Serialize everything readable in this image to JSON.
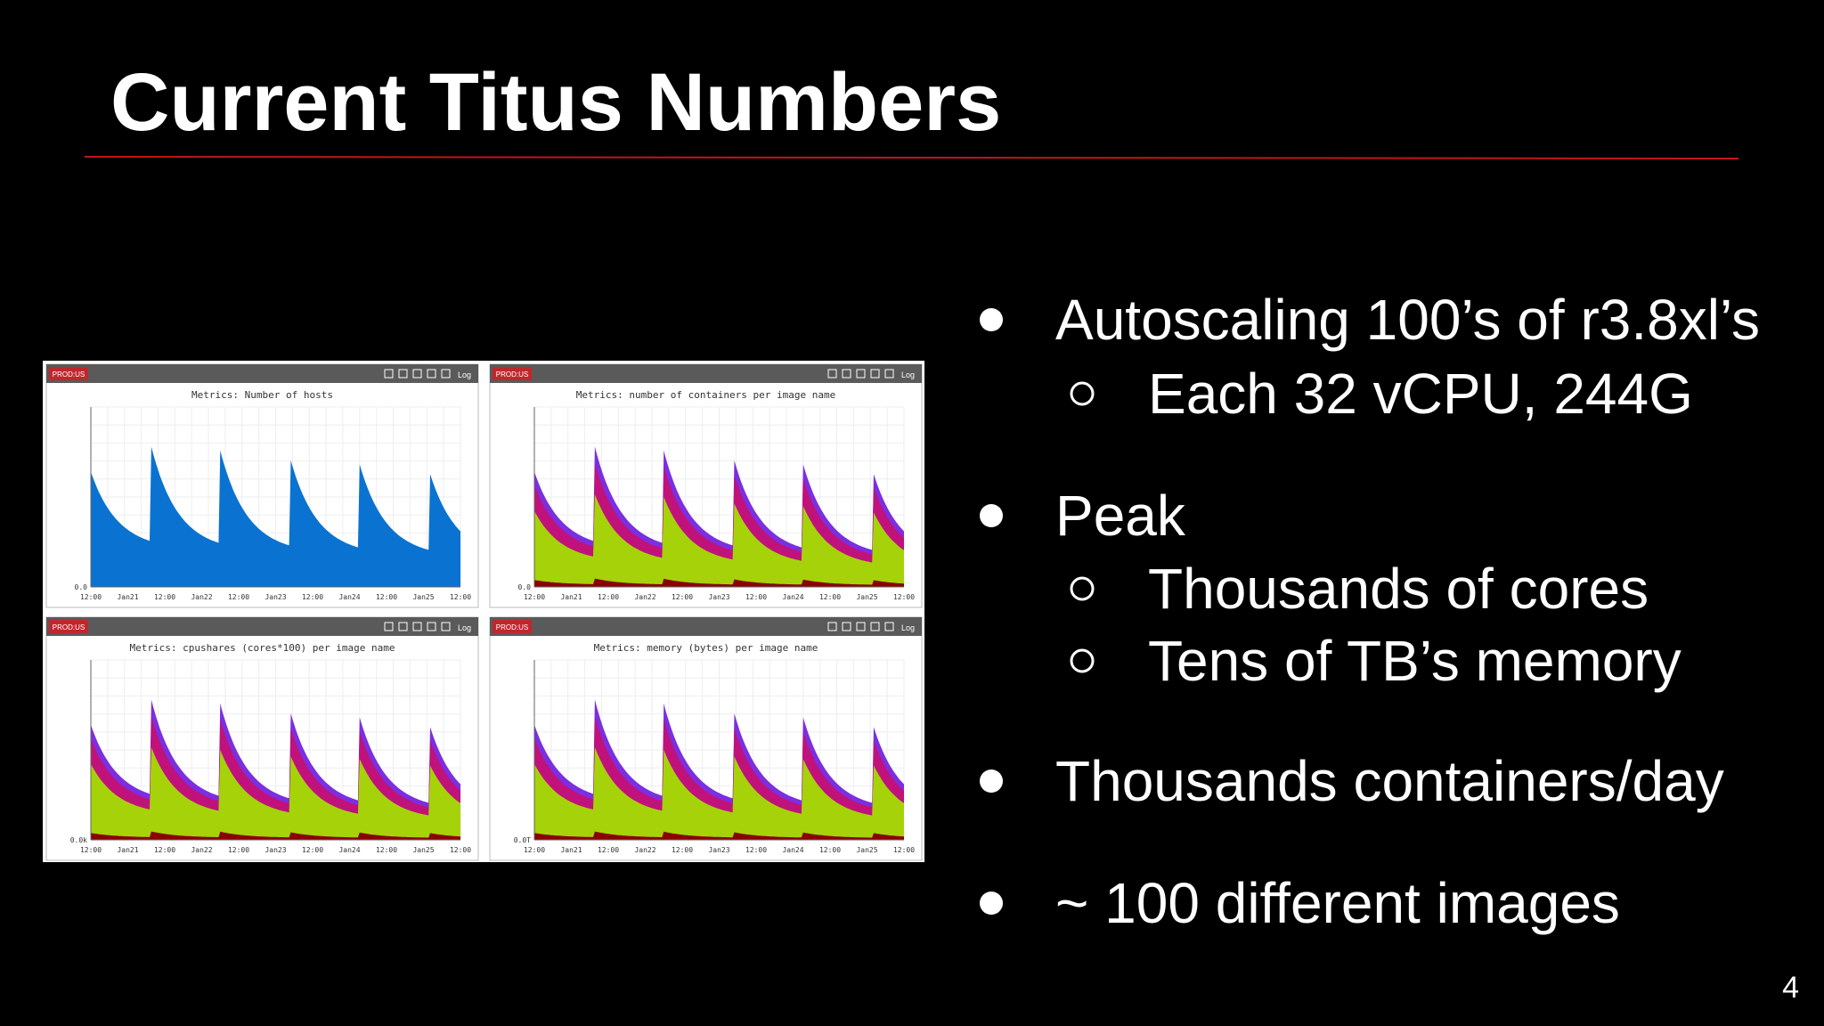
{
  "title": "Current Titus Numbers",
  "bullets": [
    {
      "text": "Autoscaling 100’s of r3.8xl’s",
      "sub": [
        "Each 32 vCPU, 244G"
      ]
    },
    {
      "text": "Peak",
      "sub": [
        "Thousands of cores",
        "Tens of TB’s memory"
      ]
    },
    {
      "text": "Thousands containers/day"
    },
    {
      "text": "~ 100 different images"
    }
  ],
  "page_number": "4",
  "panels": [
    {
      "badge": "PROD:US",
      "control": "Log",
      "title": "Metrics: Number of hosts",
      "y_label": "0.0",
      "x_labels": [
        "12:00",
        "Jan21",
        "12:00",
        "Jan22",
        "12:00",
        "Jan23",
        "12:00",
        "Jan24",
        "12:00",
        "Jan25",
        "12:00"
      ]
    },
    {
      "badge": "PROD:US",
      "control": "Log",
      "title": "Metrics: number of containers per image name",
      "y_label": "0.0",
      "x_labels": [
        "12:00",
        "Jan21",
        "12:00",
        "Jan22",
        "12:00",
        "Jan23",
        "12:00",
        "Jan24",
        "12:00",
        "Jan25",
        "12:00"
      ]
    },
    {
      "badge": "PROD:US",
      "control": "Log",
      "title": "Metrics: cpushares (cores*100) per image name",
      "y_label": "0.0k",
      "x_labels": [
        "12:00",
        "Jan21",
        "12:00",
        "Jan22",
        "12:00",
        "Jan23",
        "12:00",
        "Jan24",
        "12:00",
        "Jan25",
        "12:00"
      ]
    },
    {
      "badge": "PROD:US",
      "control": "Log",
      "title": "Metrics: memory (bytes) per image name",
      "y_label": "0.0T",
      "x_labels": [
        "12:00",
        "Jan21",
        "12:00",
        "Jan22",
        "12:00",
        "Jan23",
        "12:00",
        "Jan24",
        "12:00",
        "Jan25",
        "12:00"
      ]
    }
  ]
}
